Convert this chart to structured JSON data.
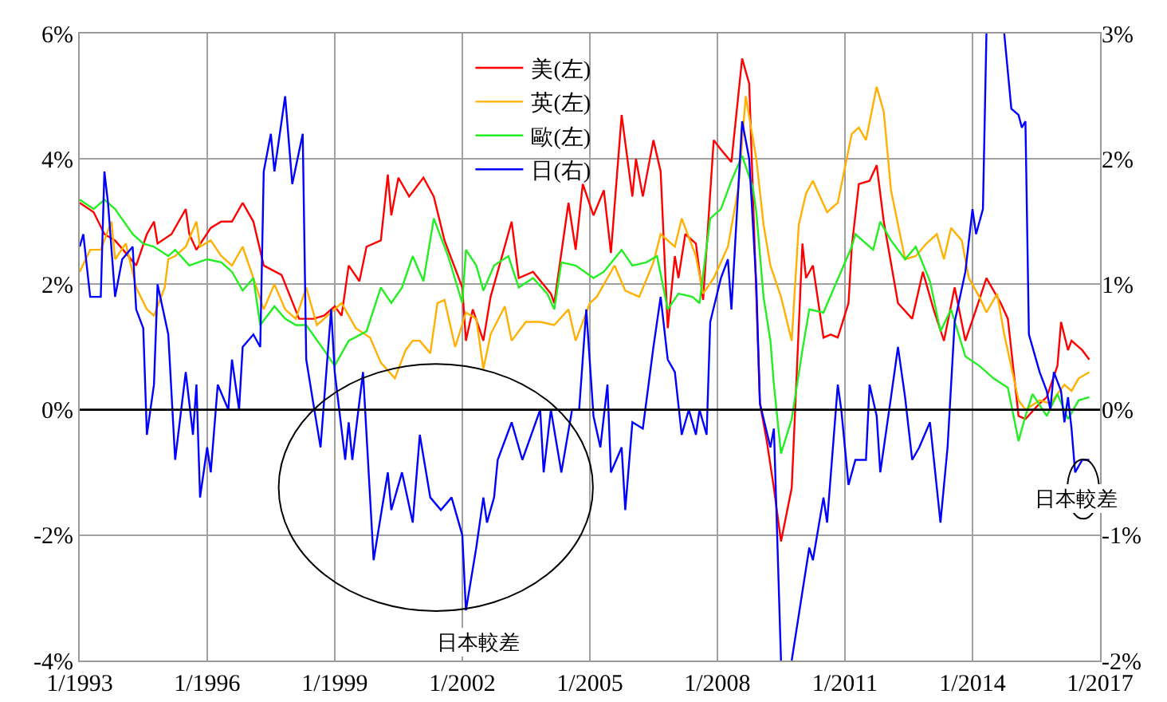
{
  "chart_data": {
    "type": "line",
    "xlim": [
      "1993-01",
      "2017-01"
    ],
    "xticks": [
      {
        "value": "1993-01",
        "label": "1/1993"
      },
      {
        "value": "1996-01",
        "label": "1/1996"
      },
      {
        "value": "1999-01",
        "label": "1/1999"
      },
      {
        "value": "2002-01",
        "label": "1/2002"
      },
      {
        "value": "2005-01",
        "label": "1/2005"
      },
      {
        "value": "2008-01",
        "label": "1/2008"
      },
      {
        "value": "2011-01",
        "label": "1/2011"
      },
      {
        "value": "2014-01",
        "label": "1/2014"
      },
      {
        "value": "2017-01",
        "label": "1/2017"
      }
    ],
    "ylim": [
      -4,
      6
    ],
    "yticks": [
      {
        "value": -4,
        "label": "-4%"
      },
      {
        "value": -2,
        "label": "-2%"
      },
      {
        "value": 0,
        "label": "0%"
      },
      {
        "value": 2,
        "label": "2%"
      },
      {
        "value": 4,
        "label": "4%"
      },
      {
        "value": 6,
        "label": "6%"
      }
    ],
    "y2lim": [
      -2,
      3
    ],
    "y2ticks": [
      {
        "value": -2,
        "label": "-2%"
      },
      {
        "value": -1,
        "label": "-1%"
      },
      {
        "value": 0,
        "label": "0%"
      },
      {
        "value": 1,
        "label": "1%"
      },
      {
        "value": 2,
        "label": "2%"
      },
      {
        "value": 3,
        "label": "3%"
      }
    ],
    "grid": true,
    "legend": "top",
    "marker": "none",
    "line_style": "solid",
    "ref_lines": [
      {
        "axis": "y",
        "value": 0,
        "color": "#000000"
      }
    ],
    "annotations": [
      "日本較差",
      "日本較差"
    ],
    "series": [
      {
        "name": "美(左)",
        "color": "#ff0000",
        "x": [
          "1993-01",
          "1993-05",
          "1993-08",
          "1993-11",
          "1994-02",
          "1994-05",
          "1994-08",
          "1994-10",
          "1994-11",
          "1995-03",
          "1995-07",
          "1995-08",
          "1995-10",
          "1996-02",
          "1996-05",
          "1996-08",
          "1996-11",
          "1997-02",
          "1997-05",
          "1997-10",
          "1998-03",
          "1998-07",
          "1998-10",
          "1999-01",
          "1999-03",
          "1999-05",
          "1999-08",
          "1999-10",
          "2000-02",
          "2000-04",
          "2000-05",
          "2000-07",
          "2000-10",
          "2001-02",
          "2001-05",
          "2001-08",
          "2002-01",
          "2002-02",
          "2002-04",
          "2002-07",
          "2002-09",
          "2002-11",
          "2003-03",
          "2003-05",
          "2003-09",
          "2004-02",
          "2004-03",
          "2004-07",
          "2004-09",
          "2004-11",
          "2005-02",
          "2005-05",
          "2005-07",
          "2005-10",
          "2006-01",
          "2006-02",
          "2006-04",
          "2006-07",
          "2006-09",
          "2006-11",
          "2007-01",
          "2007-02",
          "2007-04",
          "2007-07",
          "2007-09",
          "2007-12",
          "2008-02",
          "2008-05",
          "2008-08",
          "2008-10",
          "2009-01",
          "2009-03",
          "2009-05",
          "2009-07",
          "2009-10",
          "2010-01",
          "2010-02",
          "2010-04",
          "2010-07",
          "2010-09",
          "2010-11",
          "2011-02",
          "2011-03",
          "2011-05",
          "2011-08",
          "2011-10",
          "2011-12",
          "2012-04",
          "2012-08",
          "2012-11",
          "2013-02",
          "2013-05",
          "2013-08",
          "2013-11",
          "2014-02",
          "2014-05",
          "2014-09",
          "2014-11",
          "2015-02",
          "2015-04",
          "2015-08",
          "2015-10",
          "2016-01",
          "2016-02",
          "2016-04",
          "2016-05",
          "2016-08",
          "2016-10"
        ],
        "values": [
          3.3,
          3.15,
          2.8,
          2.7,
          2.5,
          2.3,
          2.8,
          3.0,
          2.65,
          2.8,
          3.2,
          2.8,
          2.55,
          2.9,
          3.0,
          3.0,
          3.3,
          3.0,
          2.3,
          2.15,
          1.45,
          1.45,
          1.5,
          1.65,
          1.5,
          2.3,
          2.05,
          2.6,
          2.7,
          3.75,
          3.1,
          3.7,
          3.4,
          3.7,
          3.4,
          2.7,
          1.95,
          1.1,
          1.6,
          1.1,
          1.8,
          2.2,
          3.0,
          2.1,
          2.2,
          1.85,
          1.7,
          3.3,
          2.55,
          3.6,
          3.1,
          3.5,
          2.5,
          4.7,
          3.4,
          4.0,
          3.4,
          4.3,
          3.8,
          1.3,
          2.45,
          2.1,
          2.8,
          2.65,
          1.75,
          4.3,
          4.15,
          3.95,
          5.6,
          5.2,
          0.1,
          -0.5,
          -1.25,
          -2.1,
          -1.25,
          2.65,
          2.1,
          2.3,
          1.15,
          1.2,
          1.15,
          1.7,
          2.6,
          3.6,
          3.65,
          3.9,
          3.0,
          1.7,
          1.45,
          2.2,
          1.6,
          1.1,
          1.95,
          1.1,
          1.6,
          2.1,
          1.7,
          1.45,
          -0.1,
          -0.15,
          0.1,
          0.2,
          0.7,
          1.4,
          0.95,
          1.1,
          0.95,
          0.8
        ]
      },
      {
        "name": "英(左)",
        "color": "#ffb000",
        "x": [
          "1993-01",
          "1993-04",
          "1993-07",
          "1993-10",
          "1993-11",
          "1994-02",
          "1994-05",
          "1994-08",
          "1994-10",
          "1995-01",
          "1995-02",
          "1995-04",
          "1995-07",
          "1995-10",
          "1995-11",
          "1996-02",
          "1996-05",
          "1996-08",
          "1996-11",
          "1997-02",
          "1997-05",
          "1997-08",
          "1997-11",
          "1998-02",
          "1998-05",
          "1998-08",
          "1998-11",
          "1999-03",
          "1999-07",
          "1999-11",
          "2000-02",
          "2000-06",
          "2000-09",
          "2000-11",
          "2001-01",
          "2001-04",
          "2001-06",
          "2001-08",
          "2001-11",
          "2002-02",
          "2002-05",
          "2002-07",
          "2002-09",
          "2003-01",
          "2003-03",
          "2003-07",
          "2003-11",
          "2004-03",
          "2004-07",
          "2004-09",
          "2005-01",
          "2005-03",
          "2005-08",
          "2005-11",
          "2006-03",
          "2006-07",
          "2006-09",
          "2007-01",
          "2007-03",
          "2007-07",
          "2007-09",
          "2007-12",
          "2008-04",
          "2008-07",
          "2008-09",
          "2008-12",
          "2009-02",
          "2009-04",
          "2009-07",
          "2009-10",
          "2009-12",
          "2010-02",
          "2010-04",
          "2010-08",
          "2010-11",
          "2011-03",
          "2011-05",
          "2011-07",
          "2011-10",
          "2011-12",
          "2012-02",
          "2012-06",
          "2012-09",
          "2012-12",
          "2013-03",
          "2013-05",
          "2013-07",
          "2013-10",
          "2013-12",
          "2014-03",
          "2014-05",
          "2014-08",
          "2014-10",
          "2015-02",
          "2015-04",
          "2015-08",
          "2015-11",
          "2016-03",
          "2016-05",
          "2016-07",
          "2016-10"
        ],
        "values": [
          2.2,
          2.55,
          2.55,
          3.0,
          2.4,
          2.65,
          1.95,
          1.6,
          1.5,
          1.95,
          2.4,
          2.45,
          2.6,
          3.0,
          2.6,
          2.7,
          2.45,
          2.3,
          2.6,
          2.1,
          1.6,
          2.0,
          1.6,
          1.45,
          1.95,
          1.35,
          1.5,
          1.7,
          1.3,
          1.15,
          0.75,
          0.5,
          0.95,
          1.1,
          1.1,
          0.9,
          1.7,
          1.75,
          1.0,
          1.55,
          1.45,
          0.65,
          1.2,
          1.65,
          1.1,
          1.4,
          1.4,
          1.35,
          1.6,
          1.1,
          1.7,
          1.8,
          2.3,
          1.9,
          1.8,
          2.35,
          2.8,
          2.6,
          3.05,
          2.45,
          1.85,
          2.1,
          2.6,
          3.55,
          5.0,
          4.0,
          2.95,
          2.3,
          1.8,
          1.1,
          2.95,
          3.45,
          3.65,
          3.15,
          3.3,
          4.4,
          4.5,
          4.3,
          5.15,
          4.75,
          3.5,
          2.4,
          2.45,
          2.65,
          2.8,
          2.4,
          2.9,
          2.7,
          2.1,
          1.8,
          1.55,
          1.85,
          1.2,
          0.15,
          0.0,
          0.15,
          0.1,
          0.4,
          0.3,
          0.5,
          0.6
        ]
      },
      {
        "name": "歐(左)",
        "color": "#22ee22",
        "x": [
          "1993-01",
          "1993-05",
          "1993-08",
          "1993-11",
          "1994-04",
          "1994-07",
          "1994-10",
          "1995-02",
          "1995-04",
          "1995-08",
          "1996-01",
          "1996-05",
          "1996-08",
          "1996-11",
          "1997-02",
          "1997-04",
          "1997-08",
          "1997-11",
          "1998-02",
          "1998-05",
          "1998-10",
          "1999-01",
          "1999-05",
          "1999-10",
          "2000-02",
          "2000-05",
          "2000-08",
          "2000-11",
          "2001-02",
          "2001-05",
          "2001-09",
          "2002-01",
          "2002-02",
          "2002-05",
          "2002-07",
          "2002-10",
          "2003-02",
          "2003-05",
          "2003-09",
          "2004-01",
          "2004-03",
          "2004-05",
          "2004-09",
          "2005-02",
          "2005-05",
          "2005-10",
          "2006-01",
          "2006-05",
          "2006-08",
          "2006-11",
          "2007-02",
          "2007-06",
          "2007-08",
          "2007-11",
          "2008-02",
          "2008-05",
          "2008-08",
          "2008-11",
          "2008-12",
          "2009-02",
          "2009-04",
          "2009-05",
          "2009-07",
          "2009-10",
          "2010-01",
          "2010-03",
          "2010-07",
          "2010-10",
          "2011-03",
          "2011-04",
          "2011-09",
          "2011-11",
          "2012-02",
          "2012-06",
          "2012-09",
          "2013-01",
          "2013-04",
          "2013-07",
          "2013-11",
          "2014-03",
          "2014-07",
          "2014-11",
          "2015-02",
          "2015-04",
          "2015-06",
          "2015-10",
          "2016-01",
          "2016-04",
          "2016-07",
          "2016-10"
        ],
        "values": [
          3.35,
          3.2,
          3.35,
          3.2,
          2.8,
          2.65,
          2.6,
          2.45,
          2.55,
          2.3,
          2.4,
          2.35,
          2.2,
          1.9,
          2.1,
          1.35,
          1.65,
          1.45,
          1.35,
          1.35,
          0.95,
          0.7,
          1.1,
          1.25,
          1.95,
          1.7,
          1.95,
          2.45,
          2.05,
          3.05,
          2.45,
          1.7,
          2.55,
          2.3,
          1.9,
          2.3,
          2.45,
          1.95,
          2.1,
          1.85,
          1.6,
          2.35,
          2.3,
          2.1,
          2.2,
          2.55,
          2.3,
          2.35,
          2.45,
          1.6,
          1.85,
          1.8,
          1.7,
          3.05,
          3.2,
          3.65,
          4.05,
          3.55,
          3.15,
          1.8,
          1.1,
          0.4,
          -0.7,
          -0.15,
          0.95,
          1.6,
          1.55,
          1.95,
          2.6,
          2.8,
          2.55,
          3.0,
          2.7,
          2.4,
          2.6,
          2.05,
          1.25,
          1.6,
          0.85,
          0.7,
          0.5,
          0.35,
          -0.5,
          -0.1,
          0.25,
          -0.1,
          0.25,
          -0.15,
          0.15,
          0.2
        ]
      },
      {
        "name": "日(右)",
        "color": "#0000ff",
        "axis": "y2",
        "x": [
          "1993-01",
          "1993-02",
          "1993-04",
          "1993-07",
          "1993-08",
          "1993-09",
          "1993-11",
          "1994-01",
          "1994-04",
          "1994-05",
          "1994-07",
          "1994-08",
          "1994-10",
          "1994-11",
          "1995-02",
          "1995-04",
          "1995-07",
          "1995-09",
          "1995-10",
          "1995-11",
          "1996-01",
          "1996-02",
          "1996-04",
          "1996-07",
          "1996-08",
          "1996-10",
          "1996-11",
          "1997-02",
          "1997-04",
          "1997-05",
          "1997-07",
          "1997-08",
          "1997-11",
          "1998-01",
          "1998-04",
          "1998-05",
          "1998-07",
          "1998-09",
          "1998-12",
          "1999-01",
          "1999-04",
          "1999-05",
          "1999-06",
          "1999-09",
          "1999-12",
          "2000-04",
          "2000-05",
          "2000-08",
          "2000-11",
          "2001-01",
          "2001-04",
          "2001-07",
          "2001-10",
          "2002-01",
          "2002-02",
          "2002-05",
          "2002-07",
          "2002-08",
          "2002-10",
          "2002-11",
          "2003-03",
          "2003-06",
          "2003-11",
          "2003-12",
          "2004-02",
          "2004-05",
          "2004-08",
          "2004-10",
          "2004-12",
          "2005-02",
          "2005-04",
          "2005-06",
          "2005-07",
          "2005-10",
          "2005-11",
          "2006-01",
          "2006-04",
          "2006-07",
          "2006-09",
          "2006-11",
          "2007-01",
          "2007-03",
          "2007-05",
          "2007-07",
          "2007-08",
          "2007-10",
          "2007-11",
          "2008-02",
          "2008-04",
          "2008-05",
          "2008-08",
          "2008-10",
          "2008-12",
          "2009-01",
          "2009-04",
          "2009-05",
          "2009-07",
          "2009-08",
          "2009-10",
          "2010-01",
          "2010-03",
          "2010-04",
          "2010-07",
          "2010-08",
          "2010-11",
          "2010-12",
          "2011-02",
          "2011-04",
          "2011-07",
          "2011-08",
          "2011-10",
          "2011-11",
          "2012-02",
          "2012-04",
          "2012-06",
          "2012-08",
          "2012-10",
          "2013-01",
          "2013-04",
          "2013-06",
          "2013-08",
          "2013-11",
          "2014-01",
          "2014-02",
          "2014-04",
          "2014-05",
          "2014-07",
          "2014-10",
          "2014-12",
          "2015-02",
          "2015-03",
          "2015-04",
          "2015-05",
          "2015-08",
          "2015-10",
          "2015-11",
          "2015-12",
          "2016-02",
          "2016-03",
          "2016-04",
          "2016-05",
          "2016-06",
          "2016-08",
          "2016-10"
        ],
        "values": [
          1.3,
          1.4,
          0.9,
          0.9,
          1.9,
          1.65,
          0.9,
          1.2,
          1.3,
          0.8,
          0.65,
          -0.2,
          0.2,
          1.0,
          0.6,
          -0.4,
          0.3,
          -0.2,
          0.2,
          -0.7,
          -0.3,
          -0.5,
          0.2,
          0.0,
          0.4,
          0.0,
          0.5,
          0.6,
          0.5,
          1.9,
          2.2,
          1.9,
          2.5,
          1.8,
          2.2,
          0.4,
          0.05,
          -0.3,
          0.8,
          0.3,
          -0.4,
          -0.1,
          -0.4,
          0.3,
          -1.2,
          -0.5,
          -0.8,
          -0.5,
          -0.9,
          -0.2,
          -0.7,
          -0.8,
          -0.7,
          -1.0,
          -1.6,
          -1.1,
          -0.7,
          -0.9,
          -0.7,
          -0.4,
          -0.1,
          -0.4,
          0.0,
          -0.5,
          0.0,
          -0.5,
          0.0,
          0.0,
          0.8,
          -0.05,
          -0.3,
          0.2,
          -0.5,
          -0.3,
          -0.8,
          -0.1,
          -0.15,
          0.5,
          0.9,
          0.4,
          0.3,
          -0.2,
          0.0,
          -0.2,
          0.0,
          -0.2,
          0.7,
          1.05,
          1.2,
          0.8,
          2.3,
          2.0,
          1.0,
          0.05,
          -0.3,
          -0.15,
          -2.0,
          null,
          -2.0,
          -1.45,
          -1.1,
          -1.2,
          -0.7,
          -0.9,
          0.2,
          0.0,
          -0.6,
          -0.4,
          -0.4,
          0.2,
          -0.05,
          -0.5,
          0.1,
          0.5,
          0.1,
          -0.4,
          -0.3,
          -0.1,
          -0.9,
          -0.3,
          0.7,
          1.1,
          1.6,
          1.4,
          1.6,
          3.0,
          null,
          3.0,
          2.4,
          2.35,
          2.25,
          2.3,
          0.6,
          0.3,
          0.15,
          0.0,
          0.3,
          0.15,
          -0.1,
          0.1,
          -0.15,
          -0.5,
          -0.4,
          -0.4
        ]
      }
    ]
  }
}
